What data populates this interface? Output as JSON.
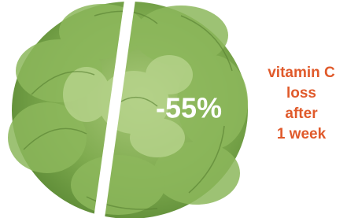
{
  "figure": {
    "value": "-55%",
    "caption": [
      "vitamin C",
      "loss",
      "after",
      "1 week"
    ]
  }
}
